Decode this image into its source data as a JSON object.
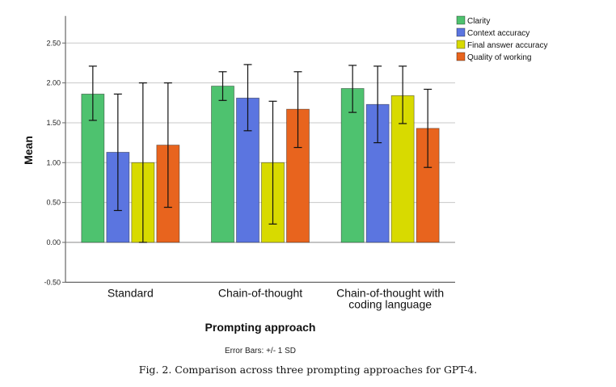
{
  "chart_data": {
    "type": "bar",
    "title": "",
    "xlabel": "Prompting approach",
    "ylabel": "Mean",
    "ylim": [
      -0.5,
      2.84
    ],
    "yticks": [
      -0.5,
      0.0,
      0.5,
      1.0,
      1.5,
      2.0,
      2.5
    ],
    "ytick_labels": [
      "-0.50",
      "0.00",
      "0.50",
      "1.00",
      "1.50",
      "2.00",
      "2.50"
    ],
    "grid": true,
    "legend_position": "top-right",
    "categories": [
      [
        "Standard"
      ],
      [
        "Chain-of-thought"
      ],
      [
        "Chain-of-thought with",
        "coding language"
      ]
    ],
    "series": [
      {
        "name": "Clarity",
        "color": "#4ec26f",
        "values": [
          1.86,
          1.96,
          1.93
        ],
        "err_low": [
          1.53,
          1.78,
          1.63
        ],
        "err_high": [
          2.21,
          2.14,
          2.22
        ]
      },
      {
        "name": "Context accuracy",
        "color": "#5b75e0",
        "values": [
          1.13,
          1.81,
          1.73
        ],
        "err_low": [
          0.4,
          1.4,
          1.25
        ],
        "err_high": [
          1.86,
          2.23,
          2.21
        ]
      },
      {
        "name": "Final answer accuracy",
        "color": "#d8da00",
        "values": [
          1.0,
          1.0,
          1.84
        ],
        "err_low": [
          0.0,
          0.23,
          1.49
        ],
        "err_high": [
          2.0,
          1.77,
          2.21
        ]
      },
      {
        "name": "Quality of working",
        "color": "#e8641e",
        "values": [
          1.22,
          1.67,
          1.43
        ],
        "err_low": [
          0.44,
          1.19,
          0.94
        ],
        "err_high": [
          2.0,
          2.14,
          1.92
        ]
      }
    ],
    "annotations": [
      "Error Bars: +/- 1 SD"
    ]
  },
  "caption": "Fig. 2.  Comparison across three prompting approaches for GPT-4."
}
